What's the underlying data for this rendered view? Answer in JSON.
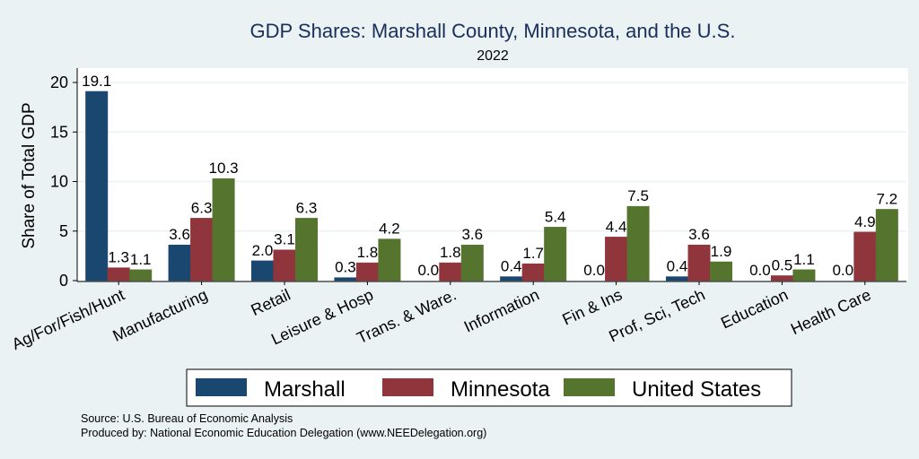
{
  "chart_data": {
    "type": "bar",
    "title": "GDP Shares: Marshall County, Minnesota, and the U.S.",
    "subtitle": "2022",
    "xlabel": "",
    "ylabel": "Share of Total GDP",
    "ylim": [
      0,
      21.8
    ],
    "yticks": [
      0,
      5,
      10,
      15,
      20
    ],
    "grid": true,
    "legend_position": "bottom",
    "categories": [
      "Ag/For/Fish/Hunt",
      "Manufacturing",
      "Retail",
      "Leisure & Hosp",
      "Trans. & Ware.",
      "Information",
      "Fin & Ins",
      "Prof, Sci, Tech",
      "Education",
      "Health Care"
    ],
    "series": [
      {
        "name": "Marshall",
        "color": "#1a476f",
        "values": [
          19.1,
          3.6,
          2.0,
          0.3,
          0.0,
          0.4,
          0.0,
          0.4,
          0.0,
          0.0
        ]
      },
      {
        "name": "Minnesota",
        "color": "#90353b",
        "values": [
          1.3,
          6.3,
          3.1,
          1.8,
          1.8,
          1.7,
          4.4,
          3.6,
          0.5,
          4.9
        ]
      },
      {
        "name": "United States",
        "color": "#55752f",
        "values": [
          1.1,
          10.3,
          6.3,
          4.2,
          3.6,
          5.4,
          7.5,
          1.9,
          1.1,
          7.2
        ]
      }
    ]
  },
  "footer": {
    "source": "Source: U.S. Bureau of Economic Analysis",
    "produced_by": "Produced by: National Economic Education Delegation (www.NEEDelegation.org)"
  }
}
